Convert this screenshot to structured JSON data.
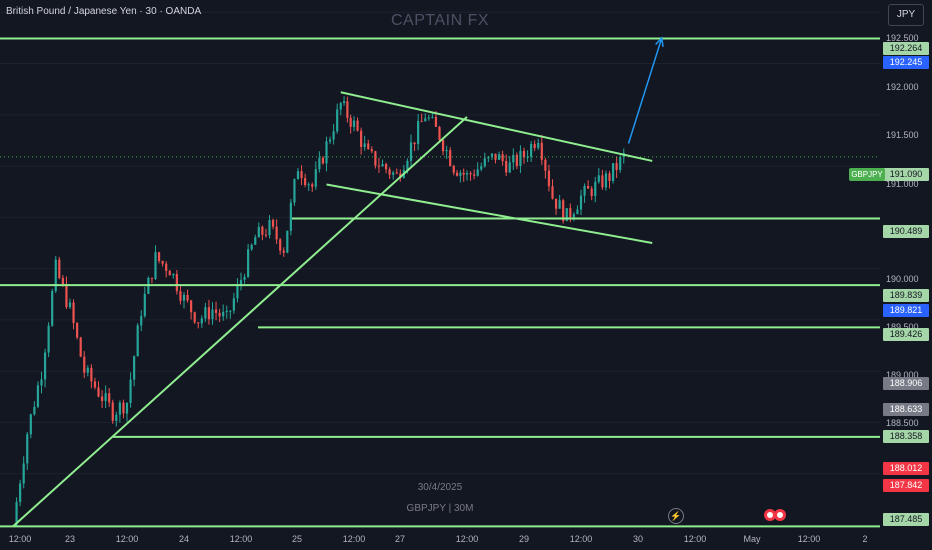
{
  "header": {
    "symbol_title": "British Pound / Japanese Yen · 30 · OANDA",
    "watermark": "CAPTAIN FX",
    "currency_button": "JPY"
  },
  "price_axis": {
    "ticks": [
      "192.500",
      "192.000",
      "191.500",
      "191.000",
      "190.000",
      "189.500",
      "189.000",
      "188.500"
    ],
    "tags": [
      {
        "label": "192.264",
        "color": "#a5d6a7"
      },
      {
        "label": "192.245",
        "color": "#2962ff"
      },
      {
        "label": "191.090",
        "color": "#a5d6a7"
      },
      {
        "label": "190.489",
        "color": "#a5d6a7"
      },
      {
        "label": "189.839",
        "color": "#a5d6a7"
      },
      {
        "label": "189.821",
        "color": "#2962ff"
      },
      {
        "label": "189.426",
        "color": "#a5d6a7"
      },
      {
        "label": "188.906",
        "color": "#787b86"
      },
      {
        "label": "188.633",
        "color": "#787b86"
      },
      {
        "label": "188.358",
        "color": "#a5d6a7"
      },
      {
        "label": "188.012",
        "color": "#f23645"
      },
      {
        "label": "187.842",
        "color": "#f23645"
      },
      {
        "label": "187.485",
        "color": "#a5d6a7"
      }
    ]
  },
  "symbol_tag": "GBPJPY",
  "time_axis": [
    "12:00",
    "23",
    "12:00",
    "24",
    "12:00",
    "25",
    "12:00",
    "27",
    "12:00",
    "29",
    "12:00",
    "30",
    "12:00",
    "May",
    "12:00",
    "2"
  ],
  "captions": {
    "date": "30/4/2025",
    "pair": "GBPJPY | 30M"
  },
  "colors": {
    "background": "#131722",
    "up": "#26a69a",
    "down": "#ef5350",
    "levels": "#90ee90",
    "projection": "#2196f3"
  },
  "chart_data": {
    "type": "candlestick",
    "symbol": "GBPJPY",
    "timeframe": "30",
    "ylim": [
      187.45,
      192.62
    ],
    "horizontal_levels": [
      192.245,
      190.489,
      189.839,
      189.426,
      188.358,
      187.485
    ],
    "price_path": [
      [
        "23 00:00",
        187.5
      ],
      [
        "23 03:00",
        188.4
      ],
      [
        "23 06:00",
        189.0
      ],
      [
        "23 09:00",
        190.0
      ],
      [
        "23 12:00",
        189.6
      ],
      [
        "23 15:00",
        189.0
      ],
      [
        "23 18:00",
        188.8
      ],
      [
        "23 21:00",
        188.6
      ],
      [
        "24 00:00",
        188.7
      ],
      [
        "24 03:00",
        189.6
      ],
      [
        "24 06:00",
        190.1
      ],
      [
        "24 09:00",
        190.0
      ],
      [
        "24 12:00",
        189.7
      ],
      [
        "24 15:00",
        189.5
      ],
      [
        "24 18:00",
        189.6
      ],
      [
        "24 21:00",
        189.5
      ],
      [
        "25 00:00",
        189.9
      ],
      [
        "25 03:00",
        190.3
      ],
      [
        "25 06:00",
        190.4
      ],
      [
        "25 09:00",
        190.2
      ],
      [
        "25 12:00",
        191.0
      ],
      [
        "25 15:00",
        190.8
      ],
      [
        "25 18:00",
        191.2
      ],
      [
        "25 21:00",
        191.6
      ],
      [
        "27 00:00",
        191.4
      ],
      [
        "27 03:00",
        191.1
      ],
      [
        "27 06:00",
        191.0
      ],
      [
        "27 09:00",
        190.9
      ],
      [
        "27 12:00",
        191.2
      ],
      [
        "27 15:00",
        191.5
      ],
      [
        "27 18:00",
        191.3
      ],
      [
        "27 21:00",
        191.0
      ],
      [
        "29 00:00",
        190.9
      ],
      [
        "29 03:00",
        191.0
      ],
      [
        "29 06:00",
        191.1
      ],
      [
        "29 09:00",
        191.0
      ],
      [
        "29 12:00",
        191.1
      ],
      [
        "29 15:00",
        191.3
      ],
      [
        "29 18:00",
        190.7
      ],
      [
        "29 21:00",
        190.5
      ],
      [
        "30 00:00",
        190.7
      ],
      [
        "30 03:00",
        190.8
      ],
      [
        "30 06:00",
        190.9
      ],
      [
        "30 09:00",
        191.09
      ]
    ]
  }
}
